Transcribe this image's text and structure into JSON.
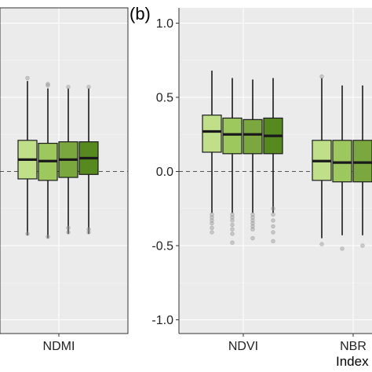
{
  "chart_data": [
    {
      "type": "box",
      "panel_label": "",
      "categories": [
        "NDMI"
      ],
      "group_colors": [
        "#bfe089",
        "#9dc85e",
        "#7aa83e",
        "#568a1e"
      ],
      "boxes": {
        "NDMI": [
          {
            "whisker_low": -0.43,
            "q1": -0.05,
            "median": 0.08,
            "q3": 0.21,
            "whisker_high": 0.61,
            "outliers": [
              0.63,
              -0.42
            ]
          },
          {
            "whisker_low": -0.45,
            "q1": -0.06,
            "median": 0.07,
            "q3": 0.19,
            "whisker_high": 0.56,
            "outliers": [
              0.59,
              0.58,
              -0.44
            ]
          },
          {
            "whisker_low": -0.42,
            "q1": -0.04,
            "median": 0.08,
            "q3": 0.2,
            "whisker_high": 0.56,
            "outliers": [
              0.57,
              -0.41,
              -0.38
            ]
          },
          {
            "whisker_low": -0.42,
            "q1": -0.02,
            "median": 0.09,
            "q3": 0.2,
            "whisker_high": 0.56,
            "outliers": [
              0.57,
              -0.41,
              -0.39
            ]
          }
        ]
      },
      "xlabel": "",
      "ylabel": ""
    },
    {
      "type": "box",
      "panel_label": "(b)",
      "categories": [
        "NDVI",
        "NBR"
      ],
      "y_ticks": [
        "-1.0",
        "-0.5",
        "0.0",
        "0.5",
        "1.0"
      ],
      "ylim": [
        -1.05,
        1.05
      ],
      "group_colors": [
        "#bfe089",
        "#9dc85e",
        "#7aa83e",
        "#568a1e"
      ],
      "boxes": {
        "NDVI": [
          {
            "whisker_low": -0.28,
            "q1": 0.13,
            "median": 0.27,
            "q3": 0.38,
            "whisker_high": 0.68,
            "outliers": [
              -0.29,
              -0.31,
              -0.33,
              -0.35,
              -0.38,
              -0.41
            ]
          },
          {
            "whisker_low": -0.28,
            "q1": 0.12,
            "median": 0.25,
            "q3": 0.36,
            "whisker_high": 0.63,
            "outliers": [
              -0.29,
              -0.31,
              -0.33,
              -0.36,
              -0.39,
              -0.42,
              -0.48
            ]
          },
          {
            "whisker_low": -0.28,
            "q1": 0.12,
            "median": 0.25,
            "q3": 0.35,
            "whisker_high": 0.62,
            "outliers": [
              -0.29,
              -0.31,
              -0.33,
              -0.35,
              -0.37,
              -0.39,
              -0.45
            ]
          },
          {
            "whisker_low": -0.28,
            "q1": 0.12,
            "median": 0.24,
            "q3": 0.36,
            "whisker_high": 0.63,
            "outliers": [
              -0.25,
              -0.29,
              -0.33,
              -0.37,
              -0.41,
              -0.47
            ]
          }
        ],
        "NBR": [
          {
            "whisker_low": -0.45,
            "q1": -0.06,
            "median": 0.07,
            "q3": 0.21,
            "whisker_high": 0.63,
            "outliers": [
              0.64,
              -0.49
            ]
          },
          {
            "whisker_low": -0.43,
            "q1": -0.07,
            "median": 0.06,
            "q3": 0.21,
            "whisker_high": 0.58,
            "outliers": [
              -0.52
            ]
          },
          {
            "whisker_low": -0.43,
            "q1": -0.07,
            "median": 0.06,
            "q3": 0.21,
            "whisker_high": 0.58,
            "outliers": [
              -0.5
            ]
          }
        ]
      },
      "xlabel": "Index",
      "ylabel": ""
    }
  ]
}
